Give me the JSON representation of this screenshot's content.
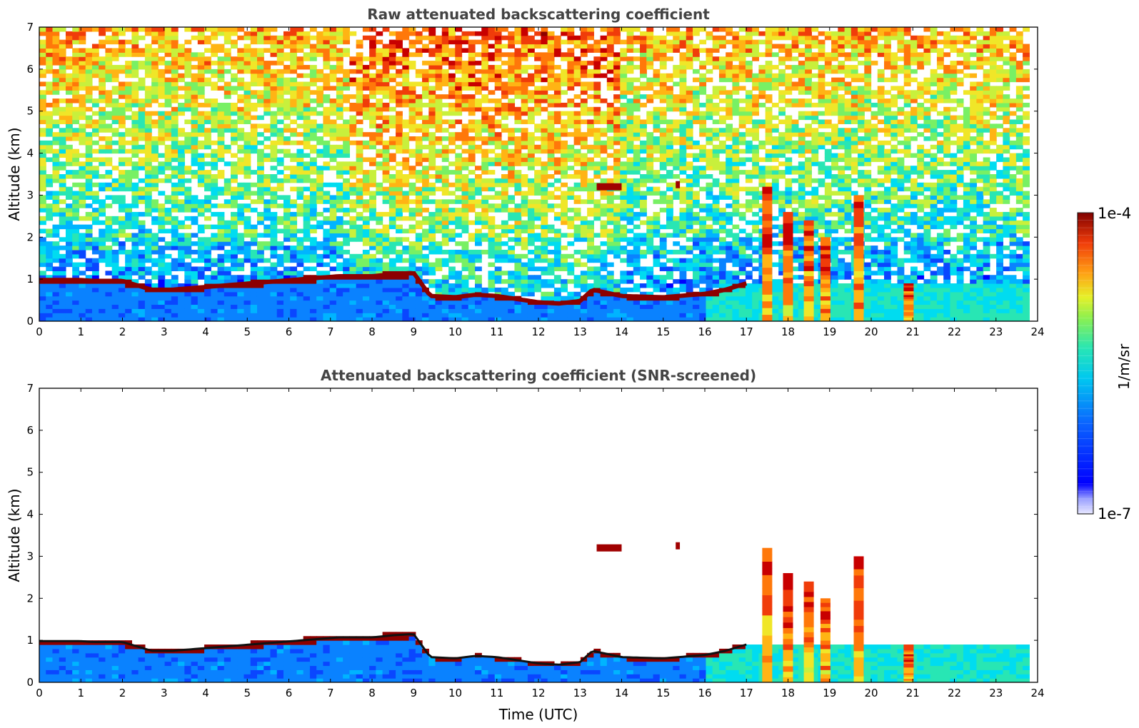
{
  "chart_data": [
    {
      "type": "heatmap",
      "title": "Raw attenuated backscattering coefficient",
      "xlabel": "",
      "ylabel": "Altitude (km)",
      "xlim": [
        0,
        24
      ],
      "ylim": [
        0,
        7
      ],
      "xticks": [
        "0",
        "1",
        "2",
        "3",
        "4",
        "5",
        "6",
        "7",
        "8",
        "9",
        "10",
        "11",
        "12",
        "13",
        "14",
        "15",
        "16",
        "17",
        "18",
        "19",
        "20",
        "21",
        "22",
        "23",
        "24"
      ],
      "yticks": [
        "0",
        "1",
        "2",
        "3",
        "4",
        "5",
        "6",
        "7"
      ],
      "data_end_time": 23.8,
      "cloud_layer": {
        "time": [
          0,
          1,
          1.3,
          2,
          2.7,
          3.2,
          7.2,
          8,
          8.5,
          9,
          9.4,
          10,
          10.5,
          11,
          12,
          12.5,
          13,
          13.3,
          14,
          15,
          16,
          16.5,
          17
        ],
        "altitude": [
          0.98,
          0.98,
          0.96,
          0.96,
          0.75,
          0.75,
          1.07,
          1.07,
          1.12,
          1.15,
          0.6,
          0.57,
          0.63,
          0.6,
          0.45,
          0.42,
          0.48,
          0.75,
          0.6,
          0.57,
          0.65,
          0.75,
          0.9
        ]
      },
      "elevated_layers": [
        {
          "time": [
            13.4,
            14.0
          ],
          "altitude": 3.2
        },
        {
          "time": [
            15.3,
            15.4
          ],
          "altitude": 3.25
        }
      ],
      "strong_columns": [
        {
          "time": 17.5,
          "top": 3.2
        },
        {
          "time": 18.0,
          "top": 2.6
        },
        {
          "time": 18.5,
          "top": 2.4
        },
        {
          "time": 18.9,
          "top": 2.0
        },
        {
          "time": 19.7,
          "top": 3.0
        },
        {
          "time": 20.9,
          "top": 0.9
        }
      ]
    },
    {
      "type": "heatmap",
      "title": "Attenuated backscattering coefficient (SNR-screened)",
      "xlabel": "Time (UTC)",
      "ylabel": "Altitude (km)",
      "xlim": [
        0,
        24
      ],
      "ylim": [
        0,
        7
      ],
      "xticks": [
        "0",
        "1",
        "2",
        "3",
        "4",
        "5",
        "6",
        "7",
        "8",
        "9",
        "10",
        "11",
        "12",
        "13",
        "14",
        "15",
        "16",
        "17",
        "18",
        "19",
        "20",
        "21",
        "22",
        "23",
        "24"
      ],
      "yticks": [
        "0",
        "1",
        "2",
        "3",
        "4",
        "5",
        "6",
        "7"
      ],
      "data_end_time": 23.8
    }
  ],
  "colorbar": {
    "label": "1/m/sr",
    "max_label": "1e-4",
    "min_label": "1e-7",
    "colormap": [
      "#0000ff",
      "#0a5aff",
      "#00b4ff",
      "#1ee6c8",
      "#50f078",
      "#b4f03c",
      "#f0e628",
      "#ffa014",
      "#f03c0a",
      "#a00000",
      "#800000"
    ]
  }
}
